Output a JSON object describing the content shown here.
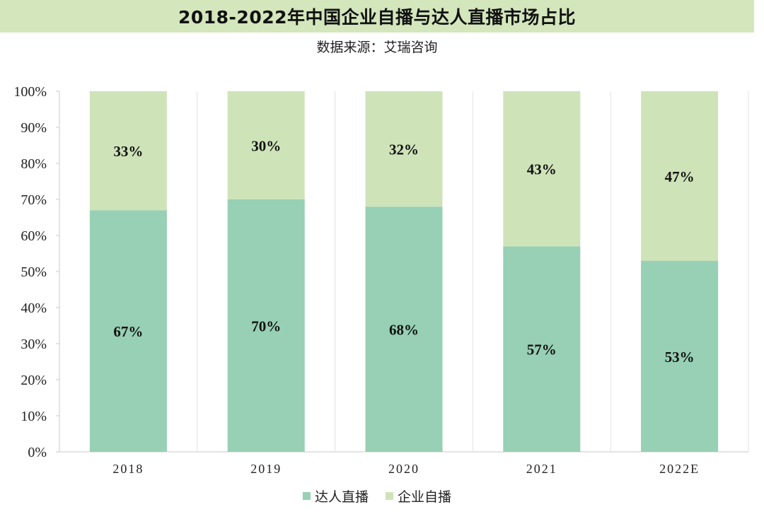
{
  "title": "2018-2022年中国企业自播与达人直播市场占比",
  "subtitle": "数据来源：艾瑞咨询",
  "colors": {
    "title_bg": "#d4e6bc",
    "talent": "#97d0b4",
    "enterprise": "#cfe3b9"
  },
  "chart_data": {
    "type": "bar",
    "stacked": true,
    "categories": [
      "2018",
      "2019",
      "2020",
      "2021",
      "2022E"
    ],
    "series": [
      {
        "name": "达人直播",
        "values": [
          67,
          70,
          68,
          57,
          53
        ],
        "labels": [
          "67%",
          "70%",
          "68%",
          "57%",
          "53%"
        ],
        "color": "#97d0b4"
      },
      {
        "name": "企业自播",
        "values": [
          33,
          30,
          32,
          43,
          47
        ],
        "labels": [
          "33%",
          "30%",
          "32%",
          "43%",
          "47%"
        ],
        "color": "#cfe3b9"
      }
    ],
    "ylim": [
      0,
      100
    ],
    "yticks": [
      "0%",
      "10%",
      "20%",
      "30%",
      "40%",
      "50%",
      "60%",
      "70%",
      "80%",
      "90%",
      "100%"
    ],
    "grid": "vertical category separators",
    "legend": "bottom-center"
  }
}
